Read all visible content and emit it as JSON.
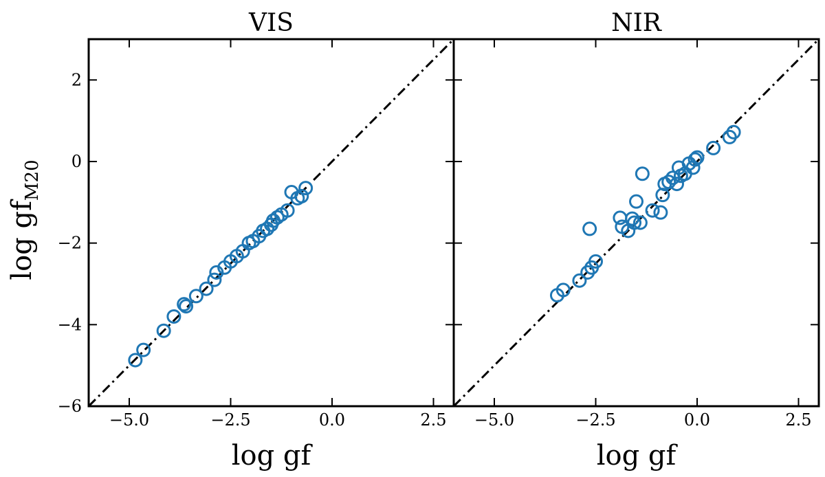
{
  "chart_data": {
    "type": "scatter",
    "ylabel": "log gf",
    "ylabel_sub": "M20",
    "yticks": [
      2,
      0,
      -2,
      -4,
      -6
    ],
    "ytick_labels": [
      "2",
      "0",
      "−2",
      "−4",
      "−6"
    ],
    "ylim": [
      -6,
      3
    ],
    "marker_color": "#1f77b4",
    "reference_line": "y = x",
    "panels": [
      {
        "title": "VIS",
        "xlabel": "log gf",
        "xlim": [
          -6,
          3
        ],
        "xticks": [
          -5.0,
          -2.5,
          0.0,
          2.5
        ],
        "xtick_labels": [
          "−5.0",
          "−2.5",
          "0.0",
          "2.5"
        ],
        "x": [
          -4.85,
          -4.65,
          -4.15,
          -3.9,
          -3.65,
          -3.6,
          -3.35,
          -3.1,
          -2.9,
          -2.85,
          -2.65,
          -2.5,
          -2.35,
          -2.2,
          -2.05,
          -1.95,
          -1.8,
          -1.7,
          -1.6,
          -1.5,
          -1.45,
          -1.35,
          -1.25,
          -1.1,
          -1.0,
          -0.85,
          -0.75,
          -0.65
        ],
        "y": [
          -4.87,
          -4.62,
          -4.15,
          -3.8,
          -3.5,
          -3.55,
          -3.3,
          -3.12,
          -2.9,
          -2.72,
          -2.6,
          -2.45,
          -2.32,
          -2.2,
          -2.0,
          -1.95,
          -1.83,
          -1.7,
          -1.65,
          -1.55,
          -1.45,
          -1.37,
          -1.3,
          -1.2,
          -0.75,
          -0.9,
          -0.85,
          -0.65
        ]
      },
      {
        "title": "NIR",
        "xlabel": "log gf",
        "xlim": [
          -6,
          3
        ],
        "xticks": [
          -5.0,
          -2.5,
          0.0,
          2.5
        ],
        "xtick_labels": [
          "−5.0",
          "−2.5",
          "0.0",
          "2.5"
        ],
        "x": [
          -3.45,
          -3.3,
          -2.9,
          -2.7,
          -2.6,
          -2.5,
          -2.65,
          -1.9,
          -1.85,
          -1.7,
          -1.6,
          -1.55,
          -1.5,
          -1.4,
          -1.35,
          -1.1,
          -0.9,
          -0.85,
          -0.8,
          -0.7,
          -0.6,
          -0.5,
          -0.45,
          -0.4,
          -0.3,
          -0.2,
          -0.1,
          -0.05,
          0.0,
          0.4,
          0.8,
          0.9
        ],
        "y": [
          -3.28,
          -3.15,
          -2.92,
          -2.72,
          -2.6,
          -2.45,
          -1.65,
          -1.38,
          -1.6,
          -1.7,
          -1.4,
          -1.5,
          -0.98,
          -1.5,
          -0.3,
          -1.2,
          -1.25,
          -0.82,
          -0.55,
          -0.5,
          -0.4,
          -0.55,
          -0.15,
          -0.35,
          -0.3,
          -0.05,
          -0.15,
          0.05,
          0.1,
          0.33,
          0.6,
          0.72
        ]
      }
    ]
  }
}
